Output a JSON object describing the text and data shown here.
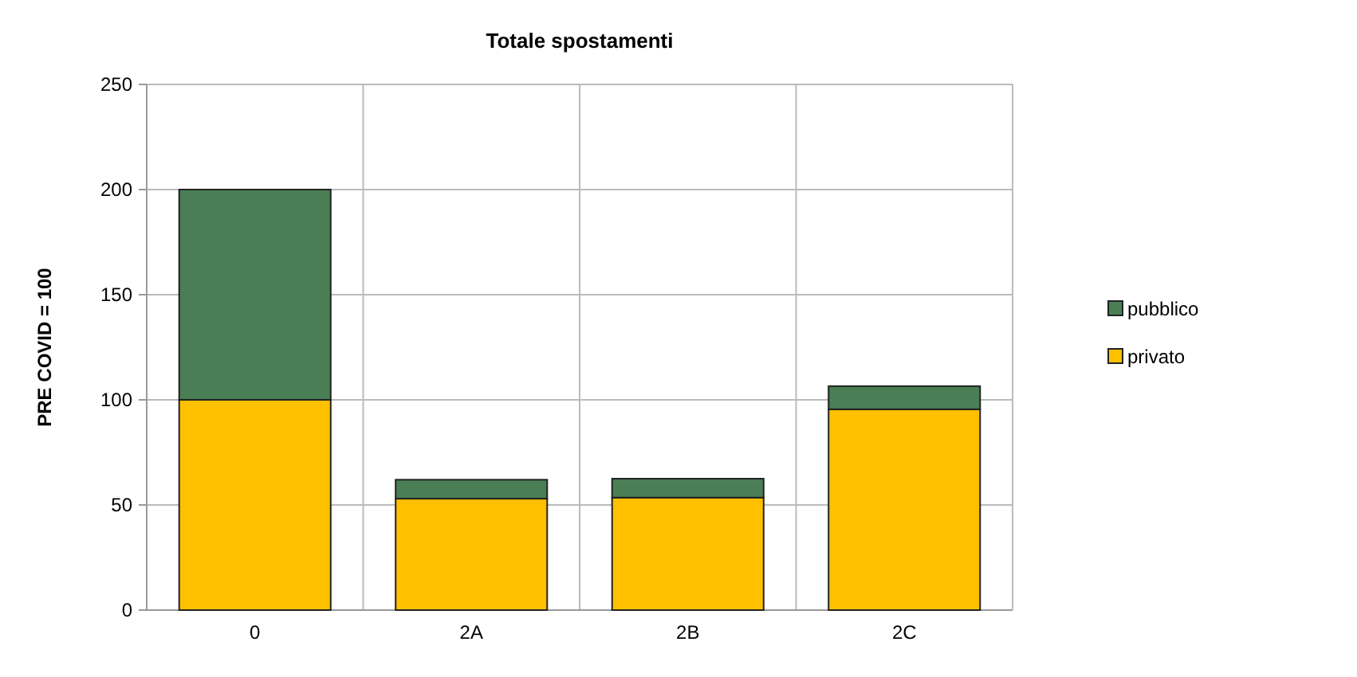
{
  "chart_data": {
    "type": "bar",
    "title": "Totale spostamenti",
    "ylabel": "PRE COVID = 100",
    "categories": [
      "0",
      "2A",
      "2B",
      "2C"
    ],
    "stacked": true,
    "series": [
      {
        "name": "privato",
        "color": "#ffc000",
        "values": [
          100,
          53,
          53.5,
          95.5
        ]
      },
      {
        "name": "pubblico",
        "color": "#4a7f55",
        "values": [
          100,
          9,
          9,
          11
        ]
      }
    ],
    "ylim": [
      0,
      250
    ],
    "yticks": [
      0,
      50,
      100,
      150,
      200,
      250
    ],
    "grid": true,
    "legend": "right"
  }
}
